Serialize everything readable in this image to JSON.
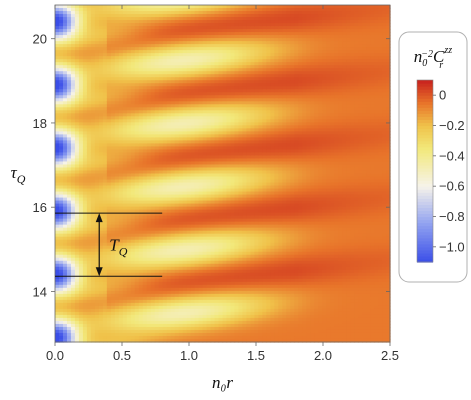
{
  "chart_data": {
    "type": "heatmap",
    "title": "",
    "xlabel": "n₀r",
    "ylabel": "τ_Q",
    "xlim": [
      0,
      2.5
    ],
    "ylim": [
      12.8,
      20.8
    ],
    "x_ticks": [
      "0.0",
      "0.5",
      "1.0",
      "1.5",
      "2.0",
      "2.5"
    ],
    "x_tick_values": [
      0,
      0.5,
      1.0,
      1.5,
      2.0,
      2.5
    ],
    "y_ticks": [
      "14",
      "16",
      "18",
      "20"
    ],
    "y_tick_values": [
      14,
      16,
      18,
      20
    ],
    "colorbar": {
      "label": "n₀⁻² C_r^zz",
      "range": [
        -1.1,
        0.1
      ],
      "ticks": [
        "0",
        "-0.2",
        "-0.4",
        "-0.6",
        "-0.8",
        "-1.0"
      ],
      "tick_values": [
        0,
        -0.2,
        -0.4,
        -0.6,
        -0.8,
        -1.0
      ],
      "colormap": [
        {
          "value": -1.1,
          "color": "#3a4ee8"
        },
        {
          "value": -0.85,
          "color": "#8fa0f0"
        },
        {
          "value": -0.6,
          "color": "#f6f3ea"
        },
        {
          "value": -0.35,
          "color": "#f2e87a"
        },
        {
          "value": -0.2,
          "color": "#f0c24a"
        },
        {
          "value": -0.05,
          "color": "#e8742a"
        },
        {
          "value": 0.1,
          "color": "#c8221e"
        }
      ]
    },
    "minima_tau": [
      12.9,
      14.4,
      15.9,
      17.4,
      18.9,
      20.4
    ],
    "min_value": -1.05,
    "period_annotation": {
      "label": "T_Q",
      "tau_from": 14.36,
      "tau_to": 15.86,
      "x_from": 0.0,
      "x_to": 0.8,
      "arrow_x": 0.33
    }
  }
}
